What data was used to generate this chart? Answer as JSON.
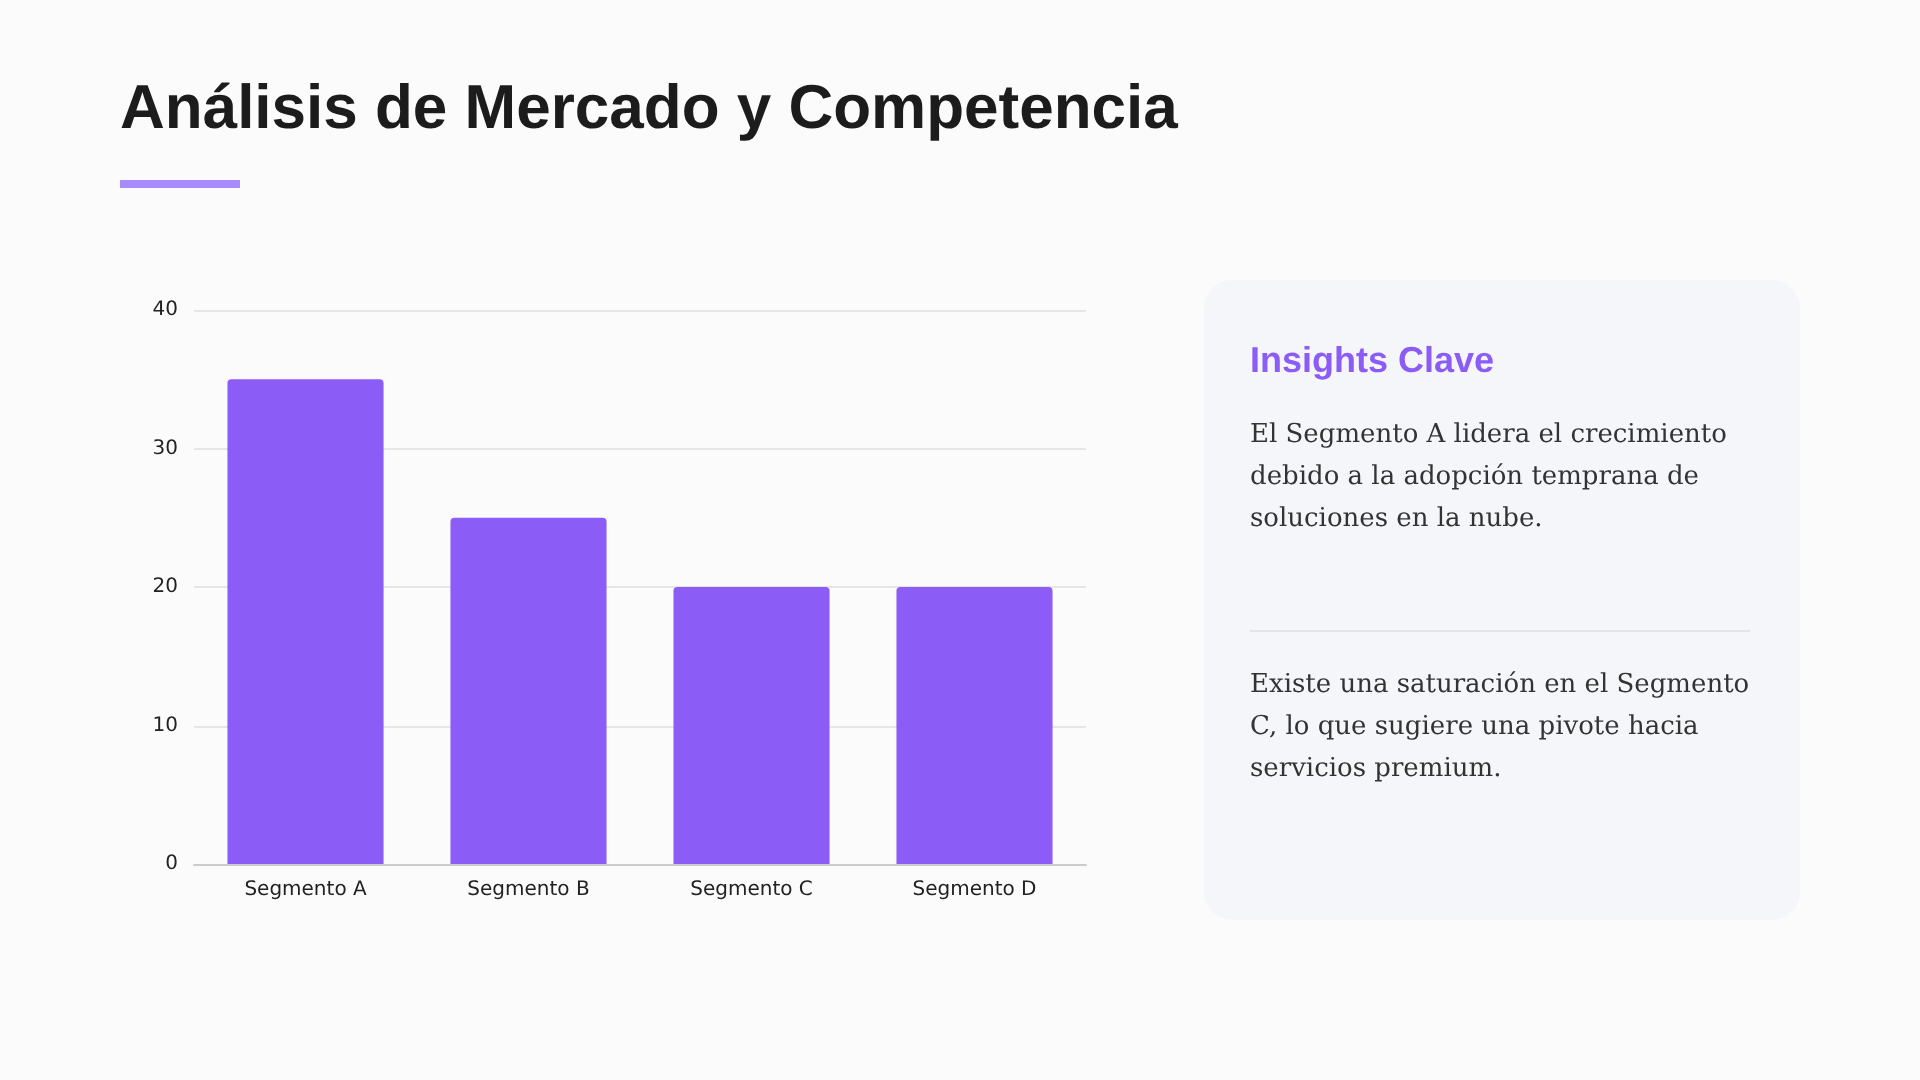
{
  "chart_data": [
    {
      "type": "bar",
      "title": "Análisis de Mercado y Competencia",
      "categories": [
        "Segmento A",
        "Segmento B",
        "Segmento C",
        "Segmento D"
      ],
      "values": [
        35,
        25,
        20,
        20
      ],
      "color": "#8b5cf6",
      "ylim": [
        0,
        40
      ],
      "yticks": [
        0,
        10,
        20,
        30,
        40
      ],
      "grid": "y"
    },
    {
      "type": "other",
      "title": "Insights Clave",
      "annotations": [
        "El Segmento A lidera el crecimiento debido a la adopción temprana de soluciones en la nube.",
        "Existe una saturación en el Segmento C, lo que sugiere una pivote hacia servicios premium."
      ]
    }
  ]
}
